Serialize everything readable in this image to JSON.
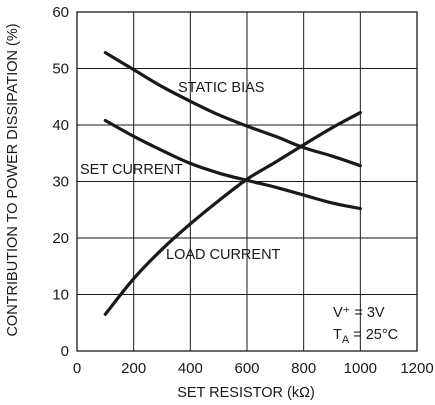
{
  "chart_data": {
    "type": "line",
    "xlabel": "SET RESISTOR (kΩ)",
    "ylabel": "CONTRIBUTION TO POWER DISSIPATION (%)",
    "xlim": [
      0,
      1200
    ],
    "ylim": [
      0,
      60
    ],
    "x_ticks": [
      "0",
      "200",
      "400",
      "600",
      "800",
      "1000",
      "1200"
    ],
    "y_ticks": [
      "0",
      "10",
      "20",
      "30",
      "40",
      "50",
      "60"
    ],
    "grid": true,
    "series": [
      {
        "name": "STATIC BIAS",
        "x": [
          100,
          200,
          300,
          400,
          500,
          600,
          700,
          800,
          900,
          1000
        ],
        "y": [
          52.8,
          49.8,
          46.8,
          44.2,
          41.8,
          39.8,
          38.0,
          36.0,
          34.5,
          32.8
        ]
      },
      {
        "name": "SET CURRENT",
        "x": [
          100,
          200,
          300,
          400,
          500,
          600,
          700,
          800,
          900,
          1000
        ],
        "y": [
          40.8,
          38.0,
          35.5,
          33.2,
          31.5,
          30.2,
          29.0,
          27.6,
          26.2,
          25.2
        ]
      },
      {
        "name": "LOAD CURRENT",
        "x": [
          100,
          200,
          300,
          400,
          500,
          600,
          700,
          800,
          900,
          1000
        ],
        "y": [
          6.5,
          12.8,
          18.0,
          22.5,
          26.6,
          30.4,
          33.4,
          36.5,
          39.5,
          42.2
        ]
      }
    ],
    "annotations": {
      "supply_label": "V⁺ = 3V",
      "temp_label_prefix": "T",
      "temp_label_sub": "A",
      "temp_label_suffix": " = 25°C"
    }
  }
}
